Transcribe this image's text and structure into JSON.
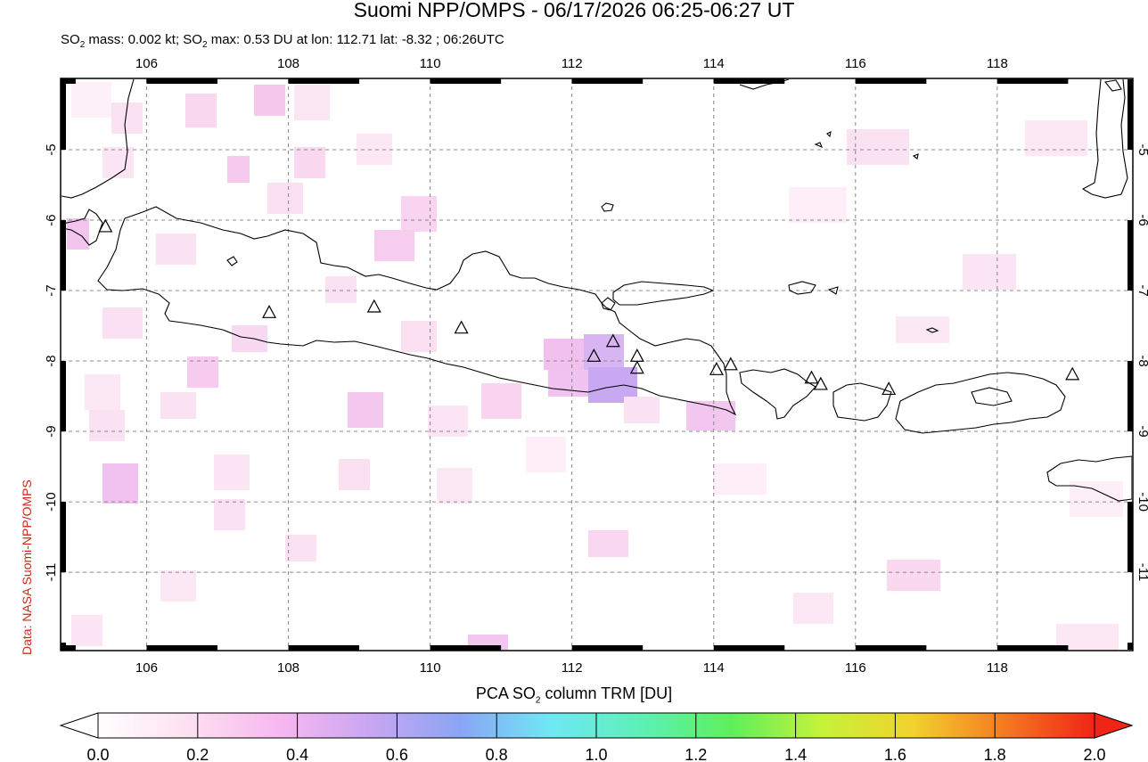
{
  "header": {
    "title": "Suomi NPP/OMPS - 06/17/2026 06:25-06:27 UT",
    "subtitle_prefix": "SO",
    "subtitle_sub1": "2",
    "subtitle_mid": " mass: 0.002 kt; SO",
    "subtitle_sub2": "2",
    "subtitle_suffix": " max: 0.53 DU at lon: 112.71 lat: -8.32 ; 06:26UTC"
  },
  "credit": "Data: NASA Suomi-NPP/OMPS",
  "map": {
    "lon_range": [
      104.8,
      119.9
    ],
    "lat_range": [
      -12.1,
      -4.0
    ],
    "lon_ticks": [
      "106",
      "108",
      "110",
      "112",
      "114",
      "116",
      "118"
    ],
    "lat_ticks": [
      "-5",
      "-6",
      "-7",
      "-8",
      "-9",
      "-10",
      "-11"
    ],
    "grid": "dashed",
    "volcanoes": [
      {
        "lon": 105.42,
        "lat": -6.1
      },
      {
        "lon": 107.73,
        "lat": -7.32
      },
      {
        "lon": 109.21,
        "lat": -7.24
      },
      {
        "lon": 110.44,
        "lat": -7.54
      },
      {
        "lon": 112.31,
        "lat": -7.94
      },
      {
        "lon": 112.58,
        "lat": -7.73
      },
      {
        "lon": 112.92,
        "lat": -7.94
      },
      {
        "lon": 112.92,
        "lat": -8.11
      },
      {
        "lon": 114.04,
        "lat": -8.13
      },
      {
        "lon": 114.24,
        "lat": -8.06
      },
      {
        "lon": 115.38,
        "lat": -8.25
      },
      {
        "lon": 115.51,
        "lat": -8.34
      },
      {
        "lon": 116.47,
        "lat": -8.41
      },
      {
        "lon": 119.06,
        "lat": -8.2
      }
    ]
  },
  "colorbar": {
    "title_prefix": "PCA SO",
    "title_sub": "2",
    "title_suffix": " column TRM [DU]",
    "ticks": [
      "0.0",
      "0.2",
      "0.4",
      "0.6",
      "0.8",
      "1.0",
      "1.2",
      "1.4",
      "1.6",
      "1.8",
      "2.0"
    ],
    "colors": [
      "#ffffff",
      "#fde0f0",
      "#f7b8f0",
      "#c9a6f2",
      "#8aa5f5",
      "#6fe8f5",
      "#5cf0b6",
      "#5ef05a",
      "#c7f23a",
      "#f2d12d",
      "#f57a20",
      "#f02417"
    ]
  }
}
